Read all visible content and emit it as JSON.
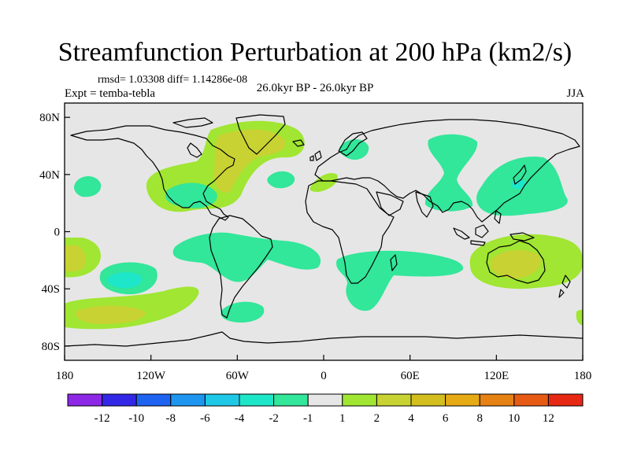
{
  "title": "Streamfunction Perturbation at 200 hPa (km2/s)",
  "stats": "rmsd= 1.03308  diff= 1.14286e-08",
  "experiment": "Expt = temba-tebla",
  "period": "26.0kyr BP - 26.0kyr BP",
  "season": "JJA",
  "map": {
    "lon_range": [
      -180,
      180
    ],
    "lat_range": [
      -90,
      90
    ],
    "x_ticks": [
      {
        "lon": -180,
        "label": "180"
      },
      {
        "lon": -120,
        "label": "120W"
      },
      {
        "lon": -60,
        "label": "60W"
      },
      {
        "lon": 0,
        "label": "0"
      },
      {
        "lon": 60,
        "label": "60E"
      },
      {
        "lon": 120,
        "label": "120E"
      },
      {
        "lon": 180,
        "label": "180"
      }
    ],
    "y_ticks": [
      {
        "lat": 80,
        "label": "80N"
      },
      {
        "lat": 40,
        "label": "40N"
      },
      {
        "lat": 0,
        "label": "0"
      },
      {
        "lat": -40,
        "label": "40S"
      },
      {
        "lat": -80,
        "label": "80S"
      }
    ],
    "background_color": "#e6e6e6",
    "coastline_color": "#000000"
  },
  "colorbar": {
    "colors": [
      "#8c28e6",
      "#3228e6",
      "#1e64f0",
      "#1e96f0",
      "#1ec8e6",
      "#1ee6c8",
      "#32e69a",
      "#e6e6e6",
      "#a0e632",
      "#c8d232",
      "#d2be1e",
      "#e6aa14",
      "#e68214",
      "#e65a14",
      "#e62814"
    ],
    "labels": [
      "-12",
      "-10",
      "-8",
      "-6",
      "-4",
      "-2",
      "-1",
      "1",
      "2",
      "4",
      "6",
      "8",
      "10",
      "12"
    ]
  },
  "chart_data": {
    "type": "map",
    "title": "Streamfunction Perturbation at 200 hPa (km2/s)",
    "variable": "streamfunction perturbation",
    "level": "200 hPa",
    "units": "km2/s",
    "contour_levels": [
      -12,
      -10,
      -8,
      -6,
      -4,
      -2,
      -1,
      1,
      2,
      4,
      6,
      8,
      10,
      12
    ],
    "anomaly_regions": [
      {
        "region": "North America / North Atlantic",
        "center_lon": -60,
        "center_lat": 55,
        "class": "1 to 2",
        "peak_class": "2 to 4"
      },
      {
        "region": "Southern Mexico / Caribbean",
        "center_lon": -95,
        "center_lat": 15,
        "class": "-1 to -2"
      },
      {
        "region": "Northeast Pacific",
        "center_lon": -150,
        "center_lat": 32,
        "class": "-1 to -2"
      },
      {
        "region": "Mid Atlantic",
        "center_lon": -25,
        "center_lat": 37,
        "class": "-1 to -2"
      },
      {
        "region": "Mediterranean",
        "center_lon": 0,
        "center_lat": 35,
        "class": "1 to 2"
      },
      {
        "region": "Baltic / Scandinavia",
        "center_lon": 15,
        "center_lat": 62,
        "class": "-1 to -2"
      },
      {
        "region": "Central Asia",
        "center_lon": 85,
        "center_lat": 45,
        "class": "-1 to -2"
      },
      {
        "region": "Japan / Northwest Pacific",
        "center_lon": 135,
        "center_lat": 30,
        "class": "-1 to -2",
        "peak_class": "-2 to -4"
      },
      {
        "region": "Tropical South America / Atlantic",
        "center_lon": -60,
        "center_lat": -15,
        "class": "-1 to -2"
      },
      {
        "region": "Southern Africa / Indian Ocean",
        "center_lon": 25,
        "center_lat": -25,
        "class": "-1 to -2"
      },
      {
        "region": "Southeast Pacific",
        "center_lon": -140,
        "center_lat": -20,
        "class": "-1 to -2",
        "peak_class": "-2 to -4"
      },
      {
        "region": "South Pacific",
        "center_lon": -160,
        "center_lat": -25,
        "class": "1 to 2",
        "peak_class": "2 to 4"
      },
      {
        "region": "Southern Ocean (Pacific)",
        "center_lon": -150,
        "center_lat": -55,
        "class": "1 to 2",
        "peak_class": "2 to 4"
      },
      {
        "region": "Drake Passage",
        "center_lon": -60,
        "center_lat": -60,
        "class": "-1 to -2"
      },
      {
        "region": "Australia",
        "center_lon": 135,
        "center_lat": -25,
        "class": "1 to 2",
        "peak_class": "2 to 4"
      }
    ]
  }
}
